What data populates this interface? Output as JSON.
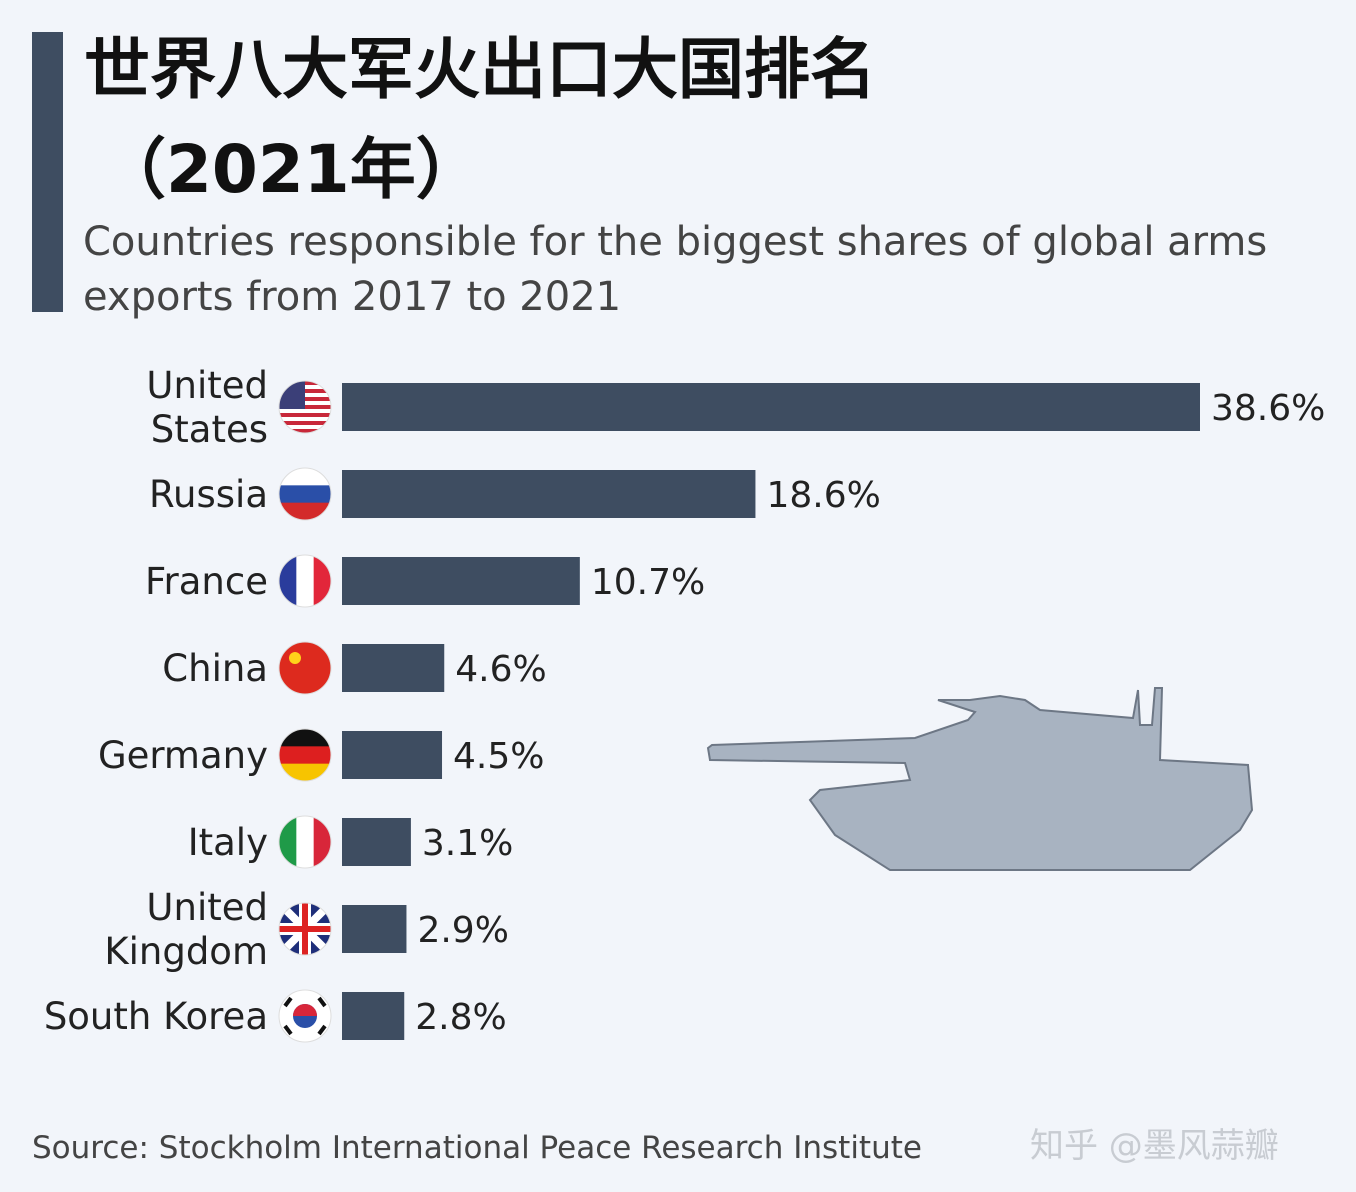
{
  "chart_data": {
    "type": "hbar",
    "title": "世界八大军火出口大国排名",
    "title_year": "（2021年）",
    "subtitle": "Countries responsible for the biggest shares of global arms exports from 2017 to 2021",
    "categories": [
      "United\nStates",
      "Russia",
      "France",
      "China",
      "Germany",
      "Italy",
      "United\nKingdom",
      "South Korea"
    ],
    "values": [
      38.6,
      18.6,
      10.7,
      4.6,
      4.5,
      3.1,
      2.9,
      2.8
    ],
    "value_labels": [
      "38.6%",
      "18.6%",
      "10.7%",
      "4.6%",
      "4.5%",
      "3.1%",
      "2.9%",
      "2.8%"
    ],
    "color": "#3e4d61",
    "source": "Source: Stockholm International Peace Research Institute",
    "watermark": "知乎 @墨风蒜瓣"
  }
}
